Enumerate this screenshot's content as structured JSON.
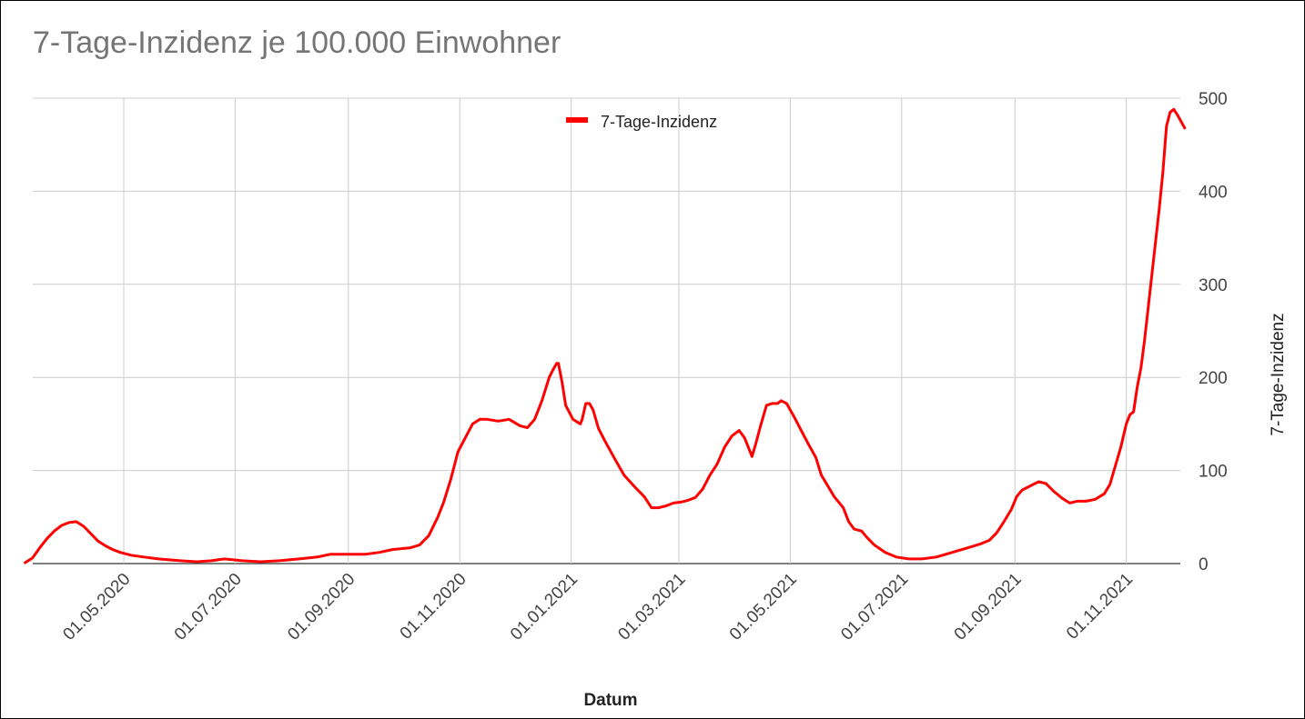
{
  "chart_data": {
    "type": "line",
    "title": "7-Tage-Inzidenz je 100.000 Einwohner",
    "xlabel": "Datum",
    "ylabel": "7-Tage-Inzidenz",
    "y_axis_position": "right",
    "ylim": [
      0,
      500
    ],
    "yticks": [
      0,
      100,
      200,
      300,
      400,
      500
    ],
    "xlim": [
      "2020-03-08",
      "2021-11-28"
    ],
    "xticks": [
      {
        "date": "2020-05-01",
        "label": "01.05.2020"
      },
      {
        "date": "2020-07-01",
        "label": "01.07.2020"
      },
      {
        "date": "2020-09-01",
        "label": "01.09.2020"
      },
      {
        "date": "2020-11-01",
        "label": "01.11.2020"
      },
      {
        "date": "2021-01-01",
        "label": "01.01.2021"
      },
      {
        "date": "2021-03-01",
        "label": "01.03.2021"
      },
      {
        "date": "2021-05-01",
        "label": "01.05.2021"
      },
      {
        "date": "2021-07-01",
        "label": "01.07.2021"
      },
      {
        "date": "2021-09-01",
        "label": "01.09.2021"
      },
      {
        "date": "2021-11-01",
        "label": "01.11.2021"
      }
    ],
    "grid": true,
    "legend_position": "top-center",
    "series": [
      {
        "name": "7-Tage-Inzidenz",
        "color": "#ff0000",
        "points": [
          [
            "2020-03-08",
            1
          ],
          [
            "2020-03-12",
            6
          ],
          [
            "2020-03-16",
            17
          ],
          [
            "2020-03-20",
            27
          ],
          [
            "2020-03-24",
            35
          ],
          [
            "2020-03-28",
            41
          ],
          [
            "2020-04-01",
            44
          ],
          [
            "2020-04-05",
            45
          ],
          [
            "2020-04-09",
            40
          ],
          [
            "2020-04-13",
            32
          ],
          [
            "2020-04-17",
            24
          ],
          [
            "2020-04-21",
            19
          ],
          [
            "2020-04-25",
            15
          ],
          [
            "2020-04-29",
            12
          ],
          [
            "2020-05-05",
            9
          ],
          [
            "2020-05-12",
            7
          ],
          [
            "2020-05-20",
            5
          ],
          [
            "2020-06-01",
            3
          ],
          [
            "2020-06-10",
            2
          ],
          [
            "2020-06-18",
            3
          ],
          [
            "2020-06-25",
            5
          ],
          [
            "2020-07-05",
            3
          ],
          [
            "2020-07-15",
            2
          ],
          [
            "2020-07-25",
            3
          ],
          [
            "2020-08-05",
            5
          ],
          [
            "2020-08-15",
            7
          ],
          [
            "2020-08-22",
            10
          ],
          [
            "2020-09-01",
            10
          ],
          [
            "2020-09-10",
            10
          ],
          [
            "2020-09-18",
            12
          ],
          [
            "2020-09-25",
            15
          ],
          [
            "2020-10-05",
            17
          ],
          [
            "2020-10-10",
            20
          ],
          [
            "2020-10-15",
            30
          ],
          [
            "2020-10-20",
            50
          ],
          [
            "2020-10-23",
            65
          ],
          [
            "2020-10-27",
            90
          ],
          [
            "2020-10-31",
            120
          ],
          [
            "2020-11-04",
            135
          ],
          [
            "2020-11-08",
            150
          ],
          [
            "2020-11-12",
            155
          ],
          [
            "2020-11-16",
            155
          ],
          [
            "2020-11-22",
            153
          ],
          [
            "2020-11-28",
            155
          ],
          [
            "2020-12-04",
            148
          ],
          [
            "2020-12-08",
            146
          ],
          [
            "2020-12-12",
            155
          ],
          [
            "2020-12-16",
            175
          ],
          [
            "2020-12-20",
            200
          ],
          [
            "2020-12-22",
            208
          ],
          [
            "2020-12-24",
            215
          ],
          [
            "2020-12-25",
            215
          ],
          [
            "2020-12-27",
            195
          ],
          [
            "2020-12-29",
            170
          ],
          [
            "2021-01-02",
            155
          ],
          [
            "2021-01-06",
            150
          ],
          [
            "2021-01-07",
            155
          ],
          [
            "2021-01-09",
            172
          ],
          [
            "2021-01-11",
            172
          ],
          [
            "2021-01-13",
            165
          ],
          [
            "2021-01-16",
            145
          ],
          [
            "2021-01-20",
            130
          ],
          [
            "2021-01-25",
            112
          ],
          [
            "2021-01-30",
            95
          ],
          [
            "2021-02-05",
            82
          ],
          [
            "2021-02-10",
            72
          ],
          [
            "2021-02-14",
            60
          ],
          [
            "2021-02-18",
            60
          ],
          [
            "2021-02-22",
            62
          ],
          [
            "2021-02-26",
            65
          ],
          [
            "2021-03-02",
            66
          ],
          [
            "2021-03-06",
            68
          ],
          [
            "2021-03-10",
            71
          ],
          [
            "2021-03-14",
            80
          ],
          [
            "2021-03-18",
            95
          ],
          [
            "2021-03-22",
            107
          ],
          [
            "2021-03-26",
            125
          ],
          [
            "2021-03-30",
            137
          ],
          [
            "2021-04-03",
            143
          ],
          [
            "2021-04-06",
            135
          ],
          [
            "2021-04-08",
            125
          ],
          [
            "2021-04-10",
            115
          ],
          [
            "2021-04-12",
            128
          ],
          [
            "2021-04-15",
            150
          ],
          [
            "2021-04-18",
            170
          ],
          [
            "2021-04-21",
            172
          ],
          [
            "2021-04-24",
            172
          ],
          [
            "2021-04-26",
            175
          ],
          [
            "2021-04-29",
            172
          ],
          [
            "2021-05-03",
            158
          ],
          [
            "2021-05-07",
            143
          ],
          [
            "2021-05-11",
            128
          ],
          [
            "2021-05-15",
            114
          ],
          [
            "2021-05-18",
            95
          ],
          [
            "2021-05-22",
            82
          ],
          [
            "2021-05-25",
            72
          ],
          [
            "2021-05-30",
            60
          ],
          [
            "2021-06-02",
            45
          ],
          [
            "2021-06-05",
            37
          ],
          [
            "2021-06-09",
            35
          ],
          [
            "2021-06-12",
            28
          ],
          [
            "2021-06-16",
            20
          ],
          [
            "2021-06-22",
            12
          ],
          [
            "2021-06-28",
            7
          ],
          [
            "2021-07-05",
            5
          ],
          [
            "2021-07-12",
            5
          ],
          [
            "2021-07-20",
            7
          ],
          [
            "2021-07-27",
            11
          ],
          [
            "2021-08-03",
            15
          ],
          [
            "2021-08-08",
            18
          ],
          [
            "2021-08-13",
            21
          ],
          [
            "2021-08-18",
            25
          ],
          [
            "2021-08-22",
            33
          ],
          [
            "2021-08-26",
            45
          ],
          [
            "2021-08-30",
            58
          ],
          [
            "2021-09-02",
            72
          ],
          [
            "2021-09-05",
            79
          ],
          [
            "2021-09-10",
            84
          ],
          [
            "2021-09-14",
            88
          ],
          [
            "2021-09-18",
            86
          ],
          [
            "2021-09-22",
            78
          ],
          [
            "2021-09-27",
            70
          ],
          [
            "2021-10-01",
            65
          ],
          [
            "2021-10-05",
            67
          ],
          [
            "2021-10-10",
            67
          ],
          [
            "2021-10-15",
            69
          ],
          [
            "2021-10-20",
            75
          ],
          [
            "2021-10-23",
            85
          ],
          [
            "2021-10-26",
            105
          ],
          [
            "2021-10-29",
            125
          ],
          [
            "2021-11-01",
            150
          ],
          [
            "2021-11-03",
            160
          ],
          [
            "2021-11-05",
            163
          ],
          [
            "2021-11-07",
            190
          ],
          [
            "2021-11-09",
            210
          ],
          [
            "2021-11-11",
            240
          ],
          [
            "2021-11-13",
            275
          ],
          [
            "2021-11-15",
            310
          ],
          [
            "2021-11-17",
            345
          ],
          [
            "2021-11-19",
            380
          ],
          [
            "2021-11-21",
            420
          ],
          [
            "2021-11-23",
            470
          ],
          [
            "2021-11-25",
            485
          ],
          [
            "2021-11-27",
            488
          ],
          [
            "2021-11-29",
            482
          ],
          [
            "2021-12-01",
            475
          ],
          [
            "2021-12-03",
            468
          ]
        ]
      }
    ]
  }
}
